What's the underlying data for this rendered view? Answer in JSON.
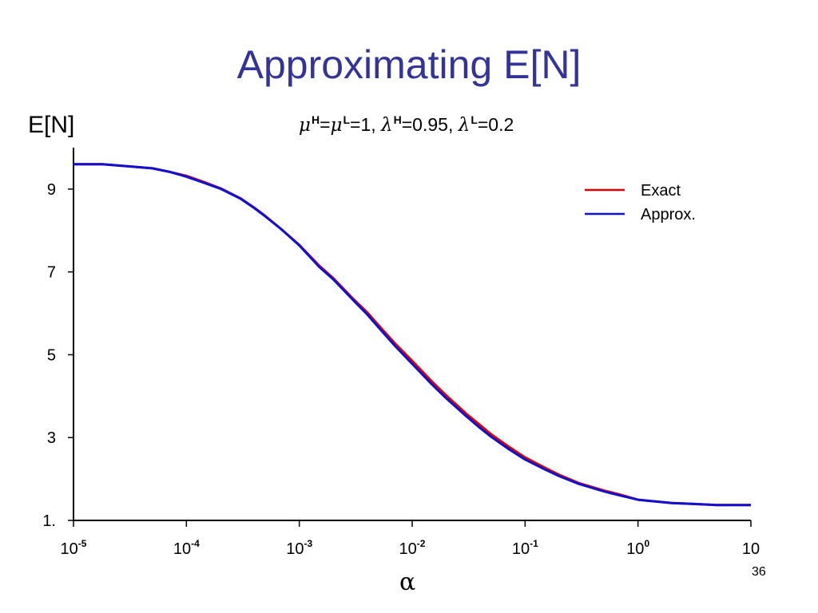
{
  "slide": {
    "title": "Approximating E[N]",
    "page_number": "36"
  },
  "chart_data": {
    "type": "line",
    "ylabel": "E[N]",
    "xlabel": "α",
    "subtitle": {
      "mu_h": "μ",
      "mu_h_sup": "H",
      "eq1": "=",
      "mu_l": "μ",
      "mu_l_sup": "L",
      "val1": "=1, ",
      "lambda_h": "λ",
      "lambda_h_sup": "H",
      "val2": "=0.95, ",
      "lambda_l": "λ",
      "lambda_l_sup": "L",
      "val3": "=0.2"
    },
    "x_scale": "log",
    "xlim": [
      1e-05,
      10
    ],
    "ylim": [
      1,
      10
    ],
    "x_ticks": [
      {
        "base": "10",
        "exp": "-5"
      },
      {
        "base": "10",
        "exp": "-4"
      },
      {
        "base": "10",
        "exp": "-3"
      },
      {
        "base": "10",
        "exp": "-2"
      },
      {
        "base": "10",
        "exp": "-1"
      },
      {
        "base": "10",
        "exp": "0"
      },
      {
        "base": "10",
        "exp": ""
      }
    ],
    "y_ticks": [
      "1.",
      "3",
      "5",
      "7",
      "9"
    ],
    "y_tick_values": [
      1,
      3,
      5,
      7,
      9
    ],
    "legend_position": "top-right",
    "series": [
      {
        "name": "Exact",
        "color": "#e00000",
        "points": [
          [
            1e-05,
            9.6
          ],
          [
            1.8e-05,
            9.6
          ],
          [
            3e-05,
            9.55
          ],
          [
            5e-05,
            9.5
          ],
          [
            7e-05,
            9.42
          ],
          [
            0.0001,
            9.32
          ],
          [
            0.00015,
            9.15
          ],
          [
            0.0002,
            9.02
          ],
          [
            0.0003,
            8.78
          ],
          [
            0.0004,
            8.55
          ],
          [
            0.0005,
            8.35
          ],
          [
            0.0007,
            8.02
          ],
          [
            0.001,
            7.65
          ],
          [
            0.0015,
            7.15
          ],
          [
            0.002,
            6.85
          ],
          [
            0.003,
            6.35
          ],
          [
            0.004,
            6.02
          ],
          [
            0.005,
            5.72
          ],
          [
            0.007,
            5.28
          ],
          [
            0.01,
            4.85
          ],
          [
            0.015,
            4.35
          ],
          [
            0.02,
            4.02
          ],
          [
            0.03,
            3.58
          ],
          [
            0.04,
            3.3
          ],
          [
            0.05,
            3.08
          ],
          [
            0.07,
            2.8
          ],
          [
            0.1,
            2.52
          ],
          [
            0.15,
            2.27
          ],
          [
            0.2,
            2.1
          ],
          [
            0.3,
            1.9
          ],
          [
            0.5,
            1.72
          ],
          [
            0.7,
            1.62
          ],
          [
            1,
            1.5
          ],
          [
            2,
            1.42
          ],
          [
            3,
            1.4
          ],
          [
            5,
            1.37
          ],
          [
            10,
            1.37
          ]
        ]
      },
      {
        "name": "Approx.",
        "color": "#1010d0",
        "points": [
          [
            1e-05,
            9.6
          ],
          [
            1.8e-05,
            9.6
          ],
          [
            3e-05,
            9.55
          ],
          [
            5e-05,
            9.5
          ],
          [
            7e-05,
            9.42
          ],
          [
            0.0001,
            9.3
          ],
          [
            0.00015,
            9.13
          ],
          [
            0.0002,
            9.01
          ],
          [
            0.0003,
            8.77
          ],
          [
            0.0004,
            8.54
          ],
          [
            0.0005,
            8.34
          ],
          [
            0.0007,
            8.02
          ],
          [
            0.001,
            7.64
          ],
          [
            0.0015,
            7.12
          ],
          [
            0.002,
            6.82
          ],
          [
            0.003,
            6.32
          ],
          [
            0.004,
            5.97
          ],
          [
            0.005,
            5.67
          ],
          [
            0.007,
            5.22
          ],
          [
            0.01,
            4.78
          ],
          [
            0.015,
            4.28
          ],
          [
            0.02,
            3.95
          ],
          [
            0.03,
            3.52
          ],
          [
            0.04,
            3.23
          ],
          [
            0.05,
            3.02
          ],
          [
            0.07,
            2.74
          ],
          [
            0.1,
            2.47
          ],
          [
            0.15,
            2.23
          ],
          [
            0.2,
            2.07
          ],
          [
            0.3,
            1.88
          ],
          [
            0.5,
            1.7
          ],
          [
            0.7,
            1.6
          ],
          [
            1,
            1.5
          ],
          [
            2,
            1.42
          ],
          [
            3,
            1.4
          ],
          [
            5,
            1.37
          ],
          [
            10,
            1.37
          ]
        ]
      }
    ]
  }
}
